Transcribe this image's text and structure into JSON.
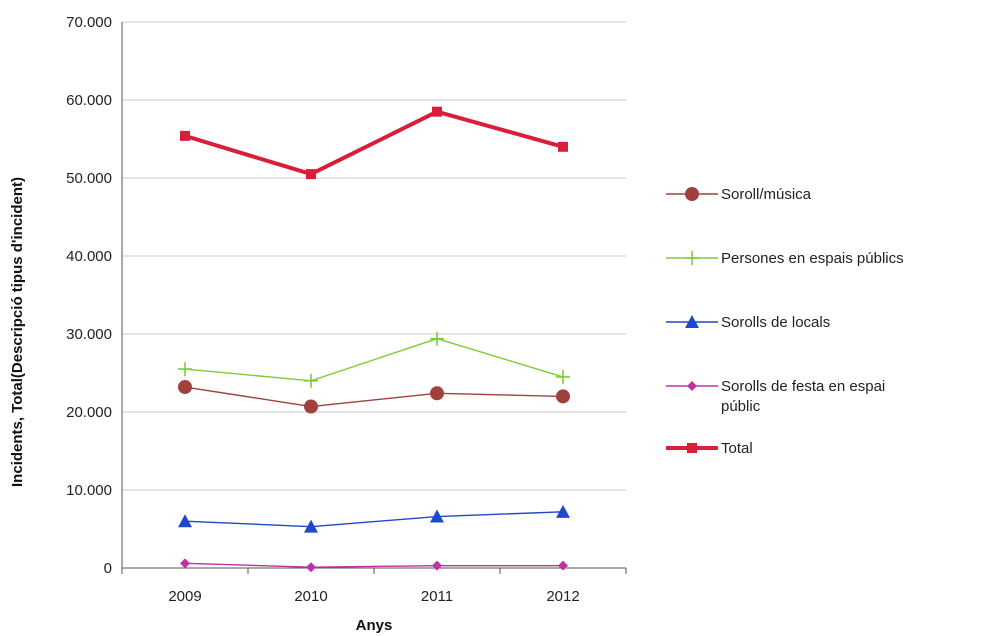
{
  "chart_data": {
    "type": "line",
    "categories": [
      "2009",
      "2010",
      "2011",
      "2012"
    ],
    "xlabel": "Anys",
    "ylabel": "Incidents, Total(Descripció tipus d'incident)",
    "ylim": [
      0,
      70000
    ],
    "yticks": [
      {
        "value": 0,
        "label": "0"
      },
      {
        "value": 10000,
        "label": "10.000"
      },
      {
        "value": 20000,
        "label": "20.000"
      },
      {
        "value": 30000,
        "label": "30.000"
      },
      {
        "value": 40000,
        "label": "40.000"
      },
      {
        "value": 50000,
        "label": "50.000"
      },
      {
        "value": 60000,
        "label": "60.000"
      },
      {
        "value": 70000,
        "label": "70.000"
      }
    ],
    "grid": true,
    "legend_position": "right",
    "series": [
      {
        "name": "Soroll/música",
        "values": [
          23200,
          20700,
          22400,
          22000
        ],
        "color": "#a0413d",
        "marker": "circle",
        "line_weight": "thin",
        "legend_lines": [
          "Soroll/música"
        ]
      },
      {
        "name": "Persones en espais públics",
        "values": [
          25500,
          24000,
          29400,
          24500
        ],
        "color": "#7ccd3c",
        "marker": "plus",
        "line_weight": "thin",
        "legend_lines": [
          "Persones en espais públics"
        ]
      },
      {
        "name": "Sorolls de locals",
        "values": [
          6000,
          5300,
          6600,
          7200
        ],
        "color": "#1f49c8",
        "marker": "triangle",
        "line_weight": "thin",
        "legend_lines": [
          "Sorolls de locals"
        ]
      },
      {
        "name": "Sorolls de festa en espai públic",
        "values": [
          600,
          100,
          300,
          300
        ],
        "color": "#c030a8",
        "marker": "diamond",
        "line_weight": "thin",
        "legend_lines": [
          "Sorolls de festa en espai",
          "públic"
        ]
      },
      {
        "name": "Total",
        "values": [
          55400,
          50500,
          58500,
          54000
        ],
        "color": "#d81e3a",
        "marker": "square",
        "line_weight": "thick",
        "legend_lines": [
          "Total"
        ]
      }
    ]
  }
}
